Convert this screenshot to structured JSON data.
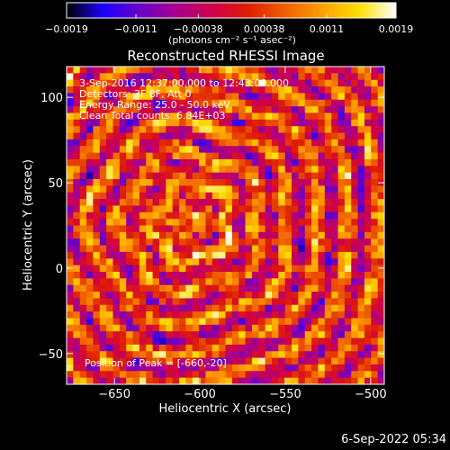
{
  "chart_data": {
    "type": "heatmap",
    "title": "Reconstructed RHESSI Image",
    "xlabel": "Heliocentric X (arcsec)",
    "ylabel": "Heliocentric Y (arcsec)",
    "xlim": [
      -678,
      -492
    ],
    "ylim": [
      -68,
      118
    ],
    "x_ticks": [
      -650,
      -600,
      -550,
      -500
    ],
    "y_ticks": [
      -50,
      0,
      50,
      100
    ],
    "x_tick_labels": [
      "−650",
      "−600",
      "−550",
      "−500"
    ],
    "y_tick_labels": [
      "−50",
      "0",
      "50",
      "100"
    ],
    "colorbar": {
      "range": [
        -0.0019,
        0.0019
      ],
      "ticks": [
        -0.0019,
        -0.0011,
        -0.00038,
        0.00038,
        0.0011,
        0.0019
      ],
      "tick_labels": [
        "−0.0019",
        "−0.0011",
        "−0.00038",
        "0.00038",
        "0.0011",
        "0.0019"
      ],
      "units": "(photons cm⁻² s⁻¹ asec⁻²)",
      "colormap": [
        "#000000",
        "#1a00ff",
        "#6a00c8",
        "#a8008c",
        "#d0004a",
        "#e02000",
        "#f06000",
        "#ffa000",
        "#ffe000",
        "#ffffff"
      ]
    },
    "annotations": [
      "3-Sep-2016 12:37:00.000 to 12:43:00.000",
      "Detectors: 3F 8F, Att 0",
      "Energy Range: 25.0 - 50.0 keV",
      "Clean     Total counts: 6.84E+03"
    ],
    "peak_label": "Position of Peak = [-660,-20]",
    "peak": {
      "x": -660,
      "y": -20
    },
    "pixel_grid": {
      "nx": 48,
      "ny": 48
    },
    "footer_date": "6-Sep-2022 05:34"
  }
}
